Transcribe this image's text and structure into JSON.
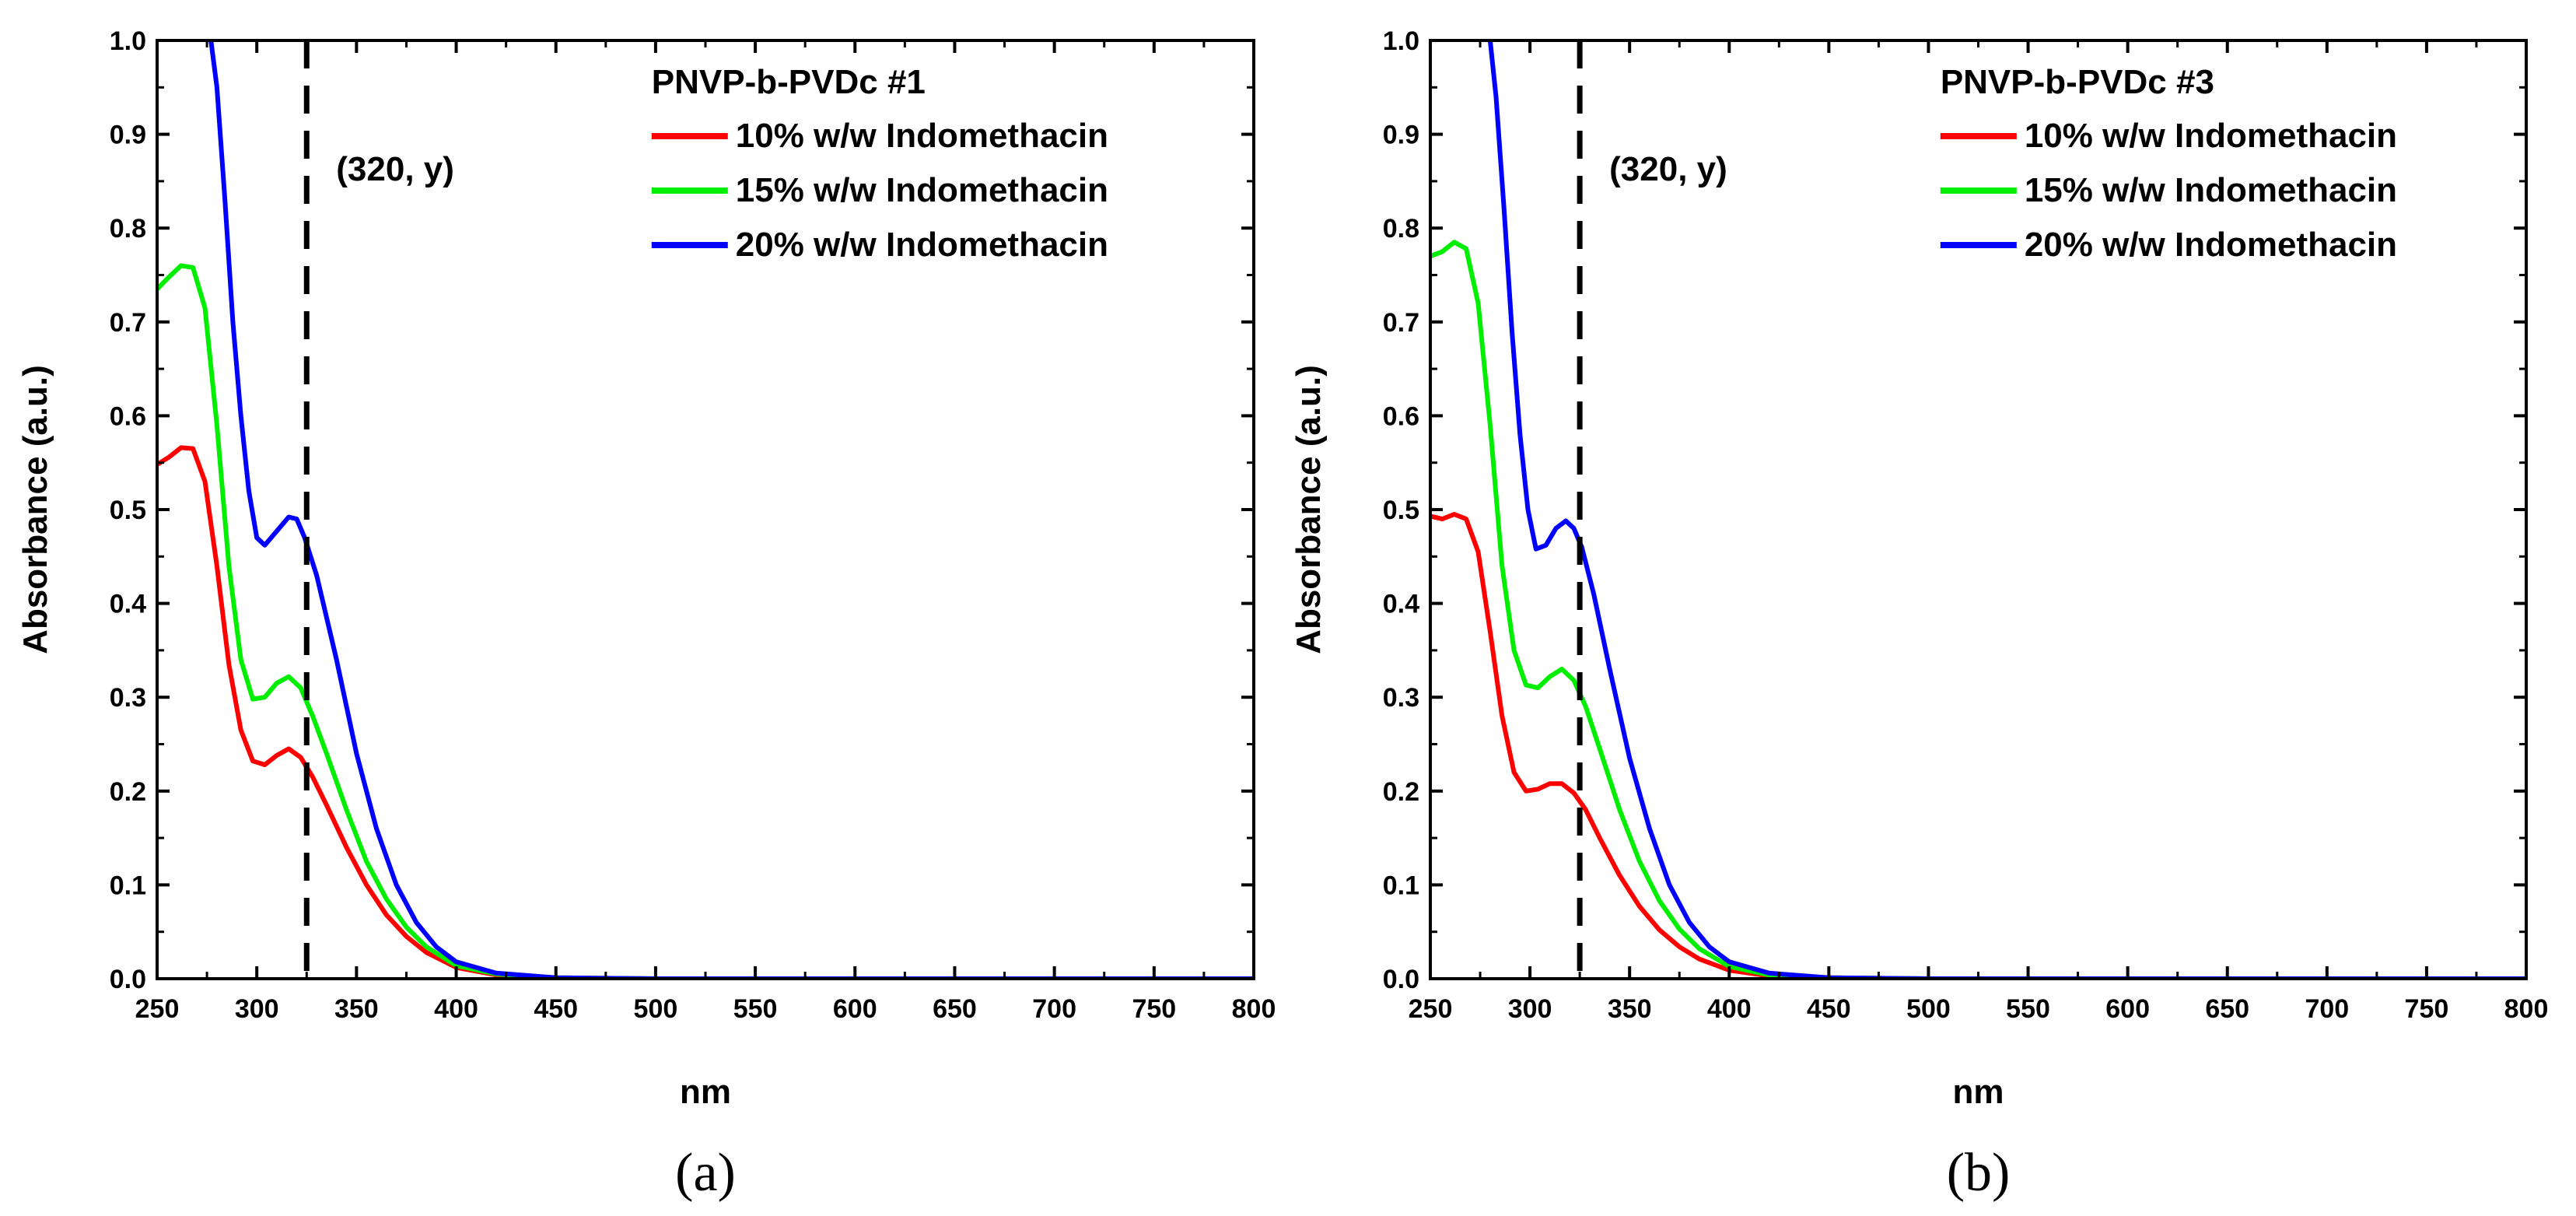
{
  "chart_data": [
    {
      "type": "line",
      "panel_label": "(a)",
      "xlabel": "nm",
      "ylabel": "Absorbance (a.u.)",
      "xlim": [
        250,
        800
      ],
      "ylim": [
        0,
        1.0
      ],
      "x_ticks": [
        250,
        300,
        350,
        400,
        450,
        500,
        550,
        600,
        650,
        700,
        750,
        800
      ],
      "y_ticks": [
        0.0,
        0.1,
        0.2,
        0.3,
        0.4,
        0.5,
        0.6,
        0.7,
        0.8,
        0.9,
        1.0
      ],
      "grid": false,
      "legend_title": "PNVP-b-PVDc #1",
      "legend_position": "top-right",
      "annotation": {
        "text": "(320, y)",
        "vline_x": 325
      },
      "series": [
        {
          "name": "10% w/w Indomethacin",
          "color": "#ff0000",
          "x": [
            250,
            256,
            262,
            268,
            274,
            280,
            286,
            292,
            298,
            304,
            310,
            316,
            322,
            328,
            335,
            345,
            355,
            365,
            375,
            385,
            400,
            420,
            450,
            500,
            550,
            600,
            650,
            700,
            750,
            800
          ],
          "y": [
            0.548,
            0.556,
            0.566,
            0.565,
            0.53,
            0.44,
            0.335,
            0.265,
            0.232,
            0.228,
            0.238,
            0.245,
            0.236,
            0.215,
            0.185,
            0.14,
            0.1,
            0.068,
            0.045,
            0.028,
            0.012,
            0.004,
            0.001,
            0,
            0,
            0,
            0,
            0,
            0,
            0
          ]
        },
        {
          "name": "15% w/w Indomethacin",
          "color": "#00ee00",
          "x": [
            250,
            256,
            262,
            268,
            274,
            280,
            286,
            292,
            298,
            304,
            310,
            316,
            322,
            328,
            335,
            345,
            355,
            365,
            375,
            385,
            400,
            420,
            450,
            500,
            550,
            600,
            650,
            700,
            750,
            800
          ],
          "y": [
            0.735,
            0.748,
            0.76,
            0.758,
            0.715,
            0.59,
            0.44,
            0.34,
            0.298,
            0.3,
            0.315,
            0.322,
            0.31,
            0.28,
            0.24,
            0.18,
            0.125,
            0.085,
            0.055,
            0.034,
            0.014,
            0.005,
            0.001,
            0,
            0,
            0,
            0,
            0,
            0,
            0
          ]
        },
        {
          "name": "20% w/w Indomethacin",
          "color": "#0000ff",
          "x": [
            277,
            280,
            284,
            288,
            292,
            296,
            300,
            304,
            310,
            316,
            320,
            324,
            330,
            340,
            350,
            360,
            370,
            380,
            390,
            400,
            420,
            450,
            500,
            550,
            600,
            650,
            700,
            750,
            800
          ],
          "y": [
            1.0,
            0.95,
            0.83,
            0.7,
            0.6,
            0.52,
            0.47,
            0.462,
            0.477,
            0.492,
            0.49,
            0.47,
            0.43,
            0.34,
            0.24,
            0.16,
            0.1,
            0.06,
            0.034,
            0.018,
            0.006,
            0.001,
            0,
            0,
            0,
            0,
            0,
            0,
            0
          ]
        }
      ]
    },
    {
      "type": "line",
      "panel_label": "(b)",
      "xlabel": "nm",
      "ylabel": "Absorbance (a.u.)",
      "xlim": [
        250,
        800
      ],
      "ylim": [
        0,
        1.0
      ],
      "x_ticks": [
        250,
        300,
        350,
        400,
        450,
        500,
        550,
        600,
        650,
        700,
        750,
        800
      ],
      "y_ticks": [
        0.0,
        0.1,
        0.2,
        0.3,
        0.4,
        0.5,
        0.6,
        0.7,
        0.8,
        0.9,
        1.0
      ],
      "grid": false,
      "legend_title": "PNVP-b-PVDc #3",
      "legend_position": "top-right",
      "annotation": {
        "text": "(320, y)",
        "vline_x": 325
      },
      "series": [
        {
          "name": "10% w/w Indomethacin",
          "color": "#ff0000",
          "x": [
            250,
            256,
            262,
            268,
            274,
            280,
            286,
            292,
            298,
            304,
            310,
            316,
            322,
            328,
            335,
            345,
            355,
            365,
            375,
            385,
            400,
            420,
            450,
            500,
            550,
            600,
            650,
            700,
            750,
            800
          ],
          "y": [
            0.493,
            0.49,
            0.495,
            0.49,
            0.455,
            0.37,
            0.28,
            0.22,
            0.2,
            0.202,
            0.208,
            0.208,
            0.198,
            0.18,
            0.15,
            0.11,
            0.077,
            0.052,
            0.034,
            0.021,
            0.009,
            0.003,
            0.001,
            0,
            0,
            0,
            0,
            0,
            0,
            0
          ]
        },
        {
          "name": "15% w/w Indomethacin",
          "color": "#00ee00",
          "x": [
            250,
            256,
            262,
            268,
            274,
            280,
            286,
            292,
            298,
            304,
            310,
            316,
            322,
            328,
            335,
            345,
            355,
            365,
            375,
            385,
            400,
            420,
            450,
            500,
            550,
            600,
            650,
            700,
            750,
            800
          ],
          "y": [
            0.77,
            0.775,
            0.785,
            0.778,
            0.72,
            0.59,
            0.44,
            0.35,
            0.313,
            0.31,
            0.322,
            0.33,
            0.318,
            0.29,
            0.245,
            0.18,
            0.125,
            0.083,
            0.053,
            0.032,
            0.013,
            0.004,
            0.001,
            0,
            0,
            0,
            0,
            0,
            0,
            0
          ]
        },
        {
          "name": "20% w/w Indomethacin",
          "color": "#0000ff",
          "x": [
            280,
            283,
            287,
            291,
            295,
            299,
            303,
            308,
            313,
            318,
            322,
            326,
            332,
            340,
            350,
            360,
            370,
            380,
            390,
            400,
            420,
            450,
            500,
            550,
            600,
            650,
            700,
            750,
            800
          ],
          "y": [
            1.0,
            0.94,
            0.82,
            0.69,
            0.58,
            0.5,
            0.458,
            0.462,
            0.48,
            0.488,
            0.48,
            0.46,
            0.41,
            0.33,
            0.235,
            0.16,
            0.1,
            0.06,
            0.034,
            0.018,
            0.006,
            0.001,
            0,
            0,
            0,
            0,
            0,
            0,
            0
          ]
        }
      ]
    }
  ]
}
